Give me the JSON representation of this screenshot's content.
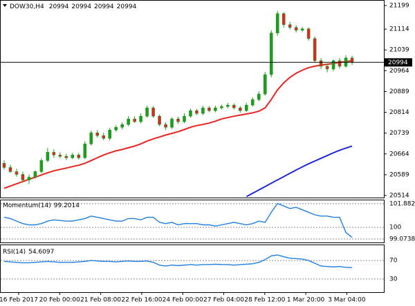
{
  "chart_data": [
    {
      "type": "candlestick",
      "title": "DOW30,H4",
      "header_values": [
        20994,
        20994,
        20994,
        20994
      ],
      "last_price": 20994,
      "up_color": "#1f9b1f",
      "down_color": "#e02424",
      "open": [
        20630,
        20615,
        20600,
        20590,
        20570,
        20580,
        20600,
        20640,
        20670,
        20660,
        20655,
        20650,
        20660,
        20650,
        20700,
        20740,
        20730,
        20720,
        20750,
        20760,
        20770,
        20790,
        20780,
        20800,
        20830,
        20800,
        20770,
        20760,
        20790,
        20780,
        20800,
        20820,
        20810,
        20830,
        20820,
        20830,
        20835,
        20840,
        20830,
        20820,
        20840,
        20860,
        20880,
        20950,
        21100,
        21170,
        21130,
        21120,
        21110,
        21115,
        21080,
        21000,
        20980,
        20970,
        21000,
        20980,
        21010
      ],
      "high": [
        20640,
        20625,
        20610,
        20600,
        20590,
        20605,
        20648,
        20685,
        20680,
        20670,
        20665,
        20668,
        20668,
        20710,
        20748,
        20750,
        20740,
        20758,
        20768,
        20778,
        20800,
        20800,
        20810,
        20838,
        20836,
        20806,
        20778,
        20796,
        20798,
        20810,
        20828,
        20826,
        20838,
        20836,
        20838,
        20842,
        20848,
        20846,
        20836,
        20848,
        20868,
        20890,
        20960,
        21110,
        21180,
        21175,
        21140,
        21128,
        21122,
        21120,
        21088,
        21010,
        20990,
        21005,
        21010,
        21020,
        21018
      ],
      "low": [
        20608,
        20595,
        20582,
        20562,
        20555,
        20574,
        20594,
        20634,
        20650,
        20648,
        20642,
        20645,
        20644,
        20645,
        20694,
        20722,
        20714,
        20712,
        20744,
        20752,
        20764,
        20776,
        20774,
        20794,
        20794,
        20764,
        20750,
        20754,
        20772,
        20775,
        20794,
        20804,
        20804,
        20814,
        20814,
        20824,
        20828,
        20824,
        20812,
        20815,
        20834,
        20854,
        20874,
        20940,
        21090,
        21120,
        21112,
        21102,
        21104,
        21072,
        20992,
        20970,
        20958,
        20962,
        20972,
        20975,
        20985
      ],
      "close": [
        20615,
        20600,
        20590,
        20570,
        20580,
        20600,
        20640,
        20670,
        20660,
        20655,
        20650,
        20660,
        20650,
        20700,
        20740,
        20730,
        20720,
        20750,
        20760,
        20770,
        20790,
        20780,
        20800,
        20830,
        20800,
        20770,
        20760,
        20790,
        20780,
        20800,
        20820,
        20810,
        20830,
        20820,
        20830,
        20835,
        20840,
        20830,
        20820,
        20840,
        20860,
        20880,
        20950,
        21100,
        21170,
        21130,
        21120,
        21110,
        21115,
        21080,
        21000,
        20980,
        20970,
        21000,
        20980,
        21010,
        20994
      ],
      "overlays": [
        {
          "color": "#e8231f",
          "values": [
            20540,
            20548,
            20556,
            20564,
            20572,
            20580,
            20588,
            20596,
            20603,
            20608,
            20613,
            20618,
            20623,
            20630,
            20640,
            20650,
            20660,
            20668,
            20675,
            20680,
            20686,
            20692,
            20700,
            20710,
            20718,
            20725,
            20732,
            20738,
            20744,
            20752,
            20760,
            20766,
            20770,
            20775,
            20782,
            20790,
            20795,
            20800,
            20804,
            20808,
            20812,
            20818,
            20830,
            20860,
            20895,
            20920,
            20940,
            20955,
            20966,
            20975,
            20980,
            20984,
            20987,
            20990,
            20994,
            20997,
            21000
          ]
        },
        {
          "color": "#1c2bd6",
          "values": [
            null,
            null,
            null,
            null,
            null,
            null,
            null,
            null,
            null,
            null,
            null,
            null,
            null,
            null,
            null,
            null,
            null,
            null,
            null,
            null,
            null,
            null,
            null,
            null,
            null,
            null,
            null,
            null,
            null,
            null,
            null,
            null,
            null,
            null,
            null,
            null,
            null,
            null,
            null,
            20510,
            20522,
            20534,
            20546,
            20558,
            20570,
            20582,
            20594,
            20606,
            20617,
            20628,
            20638,
            20648,
            20658,
            20668,
            20677,
            20685,
            20692
          ]
        }
      ],
      "ylim": [
        20509,
        21214
      ],
      "yticks": [
        21199,
        21114,
        21039,
        20964,
        20889,
        20814,
        20739,
        20664,
        20589,
        20514
      ],
      "x_labels": [
        "16 Feb 2017",
        "20 Feb 00:00",
        "21 Feb 08:00",
        "22 Feb 16:00",
        "24 Feb 00:00",
        "27 Feb 04:00",
        "28 Feb 12:00",
        "1 Mar 20:00",
        "3 Mar 04:00"
      ]
    },
    {
      "type": "line",
      "title": "Momentum(14)",
      "color": "#1e7fe0",
      "values": [
        100.8,
        100.7,
        100.5,
        100.3,
        100.2,
        100.2,
        100.3,
        100.5,
        100.6,
        100.55,
        100.5,
        100.5,
        100.6,
        100.7,
        100.9,
        100.8,
        100.7,
        100.6,
        100.5,
        100.5,
        100.7,
        100.7,
        100.6,
        100.8,
        100.8,
        100.4,
        100.3,
        100.4,
        100.2,
        100.3,
        100.3,
        100.3,
        100.2,
        100.2,
        100.1,
        100.2,
        100.3,
        100.4,
        100.3,
        100.2,
        100.3,
        100.5,
        100.4,
        101.2,
        101.9,
        101.7,
        101.5,
        101.6,
        101.4,
        101.2,
        101.0,
        100.9,
        100.9,
        100.8,
        100.8,
        99.6,
        99.2014
      ],
      "ylim": [
        98.8,
        102.153
      ],
      "yticks": [
        101.8826,
        100,
        99.0738
      ]
    },
    {
      "type": "line",
      "title": "RSI(14)",
      "color": "#1e7fe0",
      "values": [
        68,
        67,
        66,
        65,
        65,
        66,
        67,
        68,
        67,
        66,
        66,
        66,
        67,
        68,
        70,
        69,
        68,
        68,
        67,
        68,
        69,
        68,
        68,
        69,
        66,
        60,
        58,
        60,
        59,
        60,
        61,
        60,
        61,
        61,
        62,
        61,
        61,
        60,
        61,
        62,
        63,
        66,
        72,
        80,
        82,
        78,
        75,
        74,
        73,
        70,
        64,
        58,
        57,
        56,
        57,
        55,
        54.6097
      ],
      "ylim": [
        0,
        100
      ],
      "yticks": [
        70,
        30
      ]
    }
  ]
}
